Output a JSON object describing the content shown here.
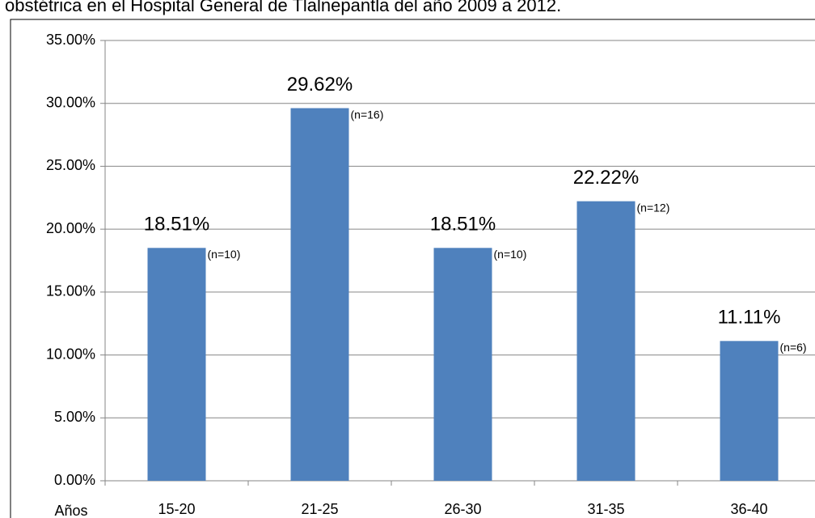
{
  "chart_data": {
    "type": "bar",
    "title": "obstétrica en el Hospital General de Tlalnepantla del año 2009 a 2012.",
    "x_label": "Años",
    "categories": [
      "15-20",
      "21-25",
      "26-30",
      "31-35",
      "36-40"
    ],
    "values": [
      18.51,
      29.62,
      18.51,
      22.22,
      11.11
    ],
    "value_labels": [
      "18.51%",
      "29.62%",
      "18.51%",
      "22.22%",
      "11.11%"
    ],
    "annotations": [
      "(n=10)",
      "(n=16)",
      "(n=10)",
      "(n=12)",
      "(n=6)"
    ],
    "color": "#4f81bd",
    "ylim": [
      0,
      35
    ],
    "yticks": [
      {
        "value": 0,
        "label": "0.00%"
      },
      {
        "value": 5,
        "label": "5.00%"
      },
      {
        "value": 10,
        "label": "10.00%"
      },
      {
        "value": 15,
        "label": "15.00%"
      },
      {
        "value": 20,
        "label": "20.00%"
      },
      {
        "value": 25,
        "label": "25.00%"
      },
      {
        "value": 30,
        "label": "30.00%"
      },
      {
        "value": 35,
        "label": "35.00%"
      }
    ],
    "grid": true
  }
}
